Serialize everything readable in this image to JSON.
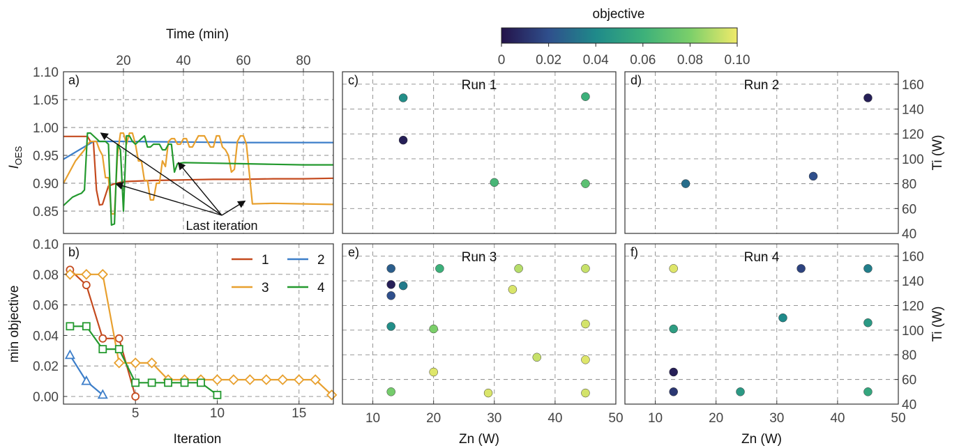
{
  "colorbar": {
    "title": "objective",
    "min": 0,
    "max": 0.1,
    "ticks": [
      "0",
      "0.02",
      "0.04",
      "0.06",
      "0.08",
      "0.10"
    ],
    "colors": [
      "#24134a",
      "#2f4f8c",
      "#1f8a8a",
      "#3cb07a",
      "#7bcf6a",
      "#f0ea6a"
    ]
  },
  "chart_data": [
    {
      "panel": "a)",
      "type": "line",
      "ylabel": "I",
      "ylabel_sub": "OES",
      "xlabel_top": "Time (min)",
      "xlim": [
        0,
        90
      ],
      "ylim": [
        0.81,
        1.1
      ],
      "xticks": [
        "20",
        "40",
        "60",
        "80"
      ],
      "yticks": [
        "0.85",
        "0.90",
        "0.95",
        "1.00",
        "1.05",
        "1.10"
      ],
      "annotation": "Last iteration",
      "series": [
        {
          "name": "1",
          "color": "#c44a1e",
          "x": [
            0,
            8,
            9,
            10,
            11,
            12,
            13,
            15,
            17,
            20,
            30,
            40,
            50,
            60,
            70,
            80,
            90
          ],
          "y": [
            0.984,
            0.984,
            0.975,
            0.973,
            0.888,
            0.861,
            0.862,
            0.895,
            0.899,
            0.903,
            0.905,
            0.906,
            0.907,
            0.907,
            0.908,
            0.908,
            0.909
          ]
        },
        {
          "name": "2",
          "color": "#3c7ec9",
          "x": [
            0,
            10,
            20,
            40,
            60,
            90
          ],
          "y": [
            0.943,
            0.975,
            0.975,
            0.974,
            0.973,
            0.973
          ]
        },
        {
          "name": "3",
          "color": "#e8a02e",
          "x": [
            0,
            4,
            7,
            8,
            9,
            11,
            12,
            13,
            14,
            15,
            16,
            17,
            18,
            19,
            20,
            21,
            22,
            23,
            24,
            25,
            26,
            27,
            28,
            29,
            30,
            31,
            32,
            33,
            34,
            35,
            36,
            37,
            38,
            39,
            40,
            41,
            42,
            43,
            44,
            45,
            47,
            49,
            50,
            51,
            52,
            53,
            54,
            55,
            56,
            57,
            58,
            59,
            60,
            61,
            63,
            70,
            80,
            90
          ],
          "y": [
            0.9,
            0.94,
            0.96,
            0.97,
            0.975,
            0.975,
            0.96,
            0.95,
            0.91,
            0.91,
            0.845,
            0.845,
            0.95,
            0.99,
            0.99,
            0.97,
            0.99,
            0.99,
            0.97,
            0.94,
            0.94,
            0.905,
            0.905,
            0.87,
            0.87,
            0.9,
            0.9,
            0.94,
            0.93,
            0.975,
            0.98,
            0.98,
            0.97,
            0.97,
            0.98,
            0.98,
            0.965,
            0.965,
            0.975,
            0.985,
            0.985,
            0.965,
            0.965,
            0.985,
            0.985,
            0.965,
            0.96,
            0.95,
            0.92,
            0.925,
            0.975,
            0.985,
            0.985,
            0.97,
            0.863,
            0.864,
            0.863,
            0.862
          ]
        },
        {
          "name": "4",
          "color": "#23992e",
          "x": [
            0,
            3,
            5,
            6,
            7,
            8,
            9,
            10,
            11,
            12,
            13,
            14,
            15,
            16,
            17,
            18,
            19,
            20,
            21,
            22,
            23,
            24,
            25,
            26,
            27,
            28,
            29,
            30,
            31,
            32,
            33,
            34,
            35,
            36,
            37,
            38,
            40,
            50,
            60,
            70,
            80,
            90
          ],
          "y": [
            0.86,
            0.875,
            0.88,
            0.882,
            0.888,
            0.99,
            0.99,
            0.985,
            0.98,
            0.975,
            0.975,
            0.975,
            0.97,
            0.825,
            0.827,
            0.97,
            0.96,
            0.85,
            0.985,
            0.985,
            0.975,
            0.97,
            0.975,
            0.98,
            0.985,
            0.965,
            0.965,
            0.97,
            0.97,
            0.97,
            0.96,
            0.96,
            0.97,
            0.97,
            0.92,
            0.935,
            0.937,
            0.936,
            0.935,
            0.934,
            0.933,
            0.933
          ]
        }
      ]
    },
    {
      "panel": "b)",
      "type": "line",
      "xlabel": "Iteration",
      "ylabel": "min objective",
      "xlim": [
        0.6,
        17.1
      ],
      "ylim": [
        -0.005,
        0.1
      ],
      "xticks": [
        "5",
        "10",
        "15"
      ],
      "yticks": [
        "0.00",
        "0.02",
        "0.04",
        "0.06",
        "0.08",
        "0.10"
      ],
      "series": [
        {
          "name": "1",
          "color": "#c44a1e",
          "marker": "circle",
          "x": [
            1,
            2,
            3,
            4,
            5
          ],
          "y": [
            0.083,
            0.073,
            0.038,
            0.038,
            0.0
          ]
        },
        {
          "name": "2",
          "color": "#3c7ec9",
          "marker": "triangle",
          "x": [
            1,
            2,
            3
          ],
          "y": [
            0.027,
            0.01,
            0.001
          ]
        },
        {
          "name": "3",
          "color": "#e8a02e",
          "marker": "diamond",
          "x": [
            1,
            2,
            3,
            4,
            5,
            6,
            7,
            8,
            9,
            10,
            11,
            12,
            13,
            14,
            15,
            16,
            17
          ],
          "y": [
            0.08,
            0.08,
            0.08,
            0.022,
            0.022,
            0.022,
            0.011,
            0.011,
            0.011,
            0.011,
            0.011,
            0.011,
            0.011,
            0.011,
            0.011,
            0.011,
            0.001
          ]
        },
        {
          "name": "4",
          "color": "#23992e",
          "marker": "square",
          "x": [
            1,
            2,
            3,
            4,
            5,
            6,
            7,
            8,
            9,
            10
          ],
          "y": [
            0.046,
            0.046,
            0.031,
            0.031,
            0.009,
            0.009,
            0.009,
            0.009,
            0.009,
            0.001
          ]
        }
      ]
    },
    {
      "panel": "c)",
      "type": "scatter",
      "title": "Run 1",
      "xlim": [
        5,
        50
      ],
      "ylim": [
        40,
        170
      ],
      "points": [
        {
          "x": 15,
          "y": 149,
          "c": 0.042
        },
        {
          "x": 45,
          "y": 150,
          "c": 0.06
        },
        {
          "x": 15,
          "y": 115,
          "c": 0.004
        },
        {
          "x": 30,
          "y": 81,
          "c": 0.064
        },
        {
          "x": 45,
          "y": 80,
          "c": 0.07
        }
      ]
    },
    {
      "panel": "d)",
      "type": "scatter",
      "title": "Run 2",
      "ylabel": "Ti (W)",
      "xlim": [
        5,
        50
      ],
      "ylim": [
        40,
        170
      ],
      "yticks": [
        "40",
        "60",
        "80",
        "100",
        "120",
        "140",
        "160"
      ],
      "points": [
        {
          "x": 45,
          "y": 149,
          "c": 0.004
        },
        {
          "x": 36,
          "y": 86,
          "c": 0.02
        },
        {
          "x": 15,
          "y": 80,
          "c": 0.03
        }
      ]
    },
    {
      "panel": "e)",
      "type": "scatter",
      "title": "Run 3",
      "xlabel": "Zn (W)",
      "xlim": [
        5,
        50
      ],
      "ylim": [
        40,
        170
      ],
      "xticks": [
        "10",
        "20",
        "30",
        "40",
        "50"
      ],
      "points": [
        {
          "x": 13,
          "y": 150,
          "c": 0.025
        },
        {
          "x": 21,
          "y": 150,
          "c": 0.06
        },
        {
          "x": 34,
          "y": 150,
          "c": 0.09
        },
        {
          "x": 45,
          "y": 150,
          "c": 0.093
        },
        {
          "x": 13,
          "y": 137,
          "c": 0.004
        },
        {
          "x": 15,
          "y": 136,
          "c": 0.035
        },
        {
          "x": 33,
          "y": 133,
          "c": 0.096
        },
        {
          "x": 13,
          "y": 128,
          "c": 0.02
        },
        {
          "x": 13,
          "y": 103,
          "c": 0.042
        },
        {
          "x": 20,
          "y": 101,
          "c": 0.08
        },
        {
          "x": 45,
          "y": 105,
          "c": 0.095
        },
        {
          "x": 37,
          "y": 78,
          "c": 0.093
        },
        {
          "x": 45,
          "y": 76,
          "c": 0.097
        },
        {
          "x": 20,
          "y": 66,
          "c": 0.097
        },
        {
          "x": 13,
          "y": 50,
          "c": 0.078
        },
        {
          "x": 29,
          "y": 49,
          "c": 0.096
        },
        {
          "x": 45,
          "y": 49,
          "c": 0.095
        }
      ]
    },
    {
      "panel": "f)",
      "type": "scatter",
      "title": "Run 4",
      "xlabel": "Zn (W)",
      "ylabel": "Ti (W)",
      "xlim": [
        5,
        50
      ],
      "ylim": [
        40,
        170
      ],
      "xticks": [
        "10",
        "20",
        "30",
        "40",
        "50"
      ],
      "yticks": [
        "40",
        "60",
        "80",
        "100",
        "120",
        "140",
        "160"
      ],
      "points": [
        {
          "x": 13,
          "y": 150,
          "c": 0.097
        },
        {
          "x": 34,
          "y": 150,
          "c": 0.016
        },
        {
          "x": 45,
          "y": 150,
          "c": 0.036
        },
        {
          "x": 31,
          "y": 110,
          "c": 0.04
        },
        {
          "x": 45,
          "y": 106,
          "c": 0.048
        },
        {
          "x": 13,
          "y": 101,
          "c": 0.05
        },
        {
          "x": 13,
          "y": 66,
          "c": 0.004
        },
        {
          "x": 13,
          "y": 50,
          "c": 0.012
        },
        {
          "x": 24,
          "y": 50,
          "c": 0.048
        },
        {
          "x": 45,
          "y": 50,
          "c": 0.055
        }
      ]
    }
  ]
}
